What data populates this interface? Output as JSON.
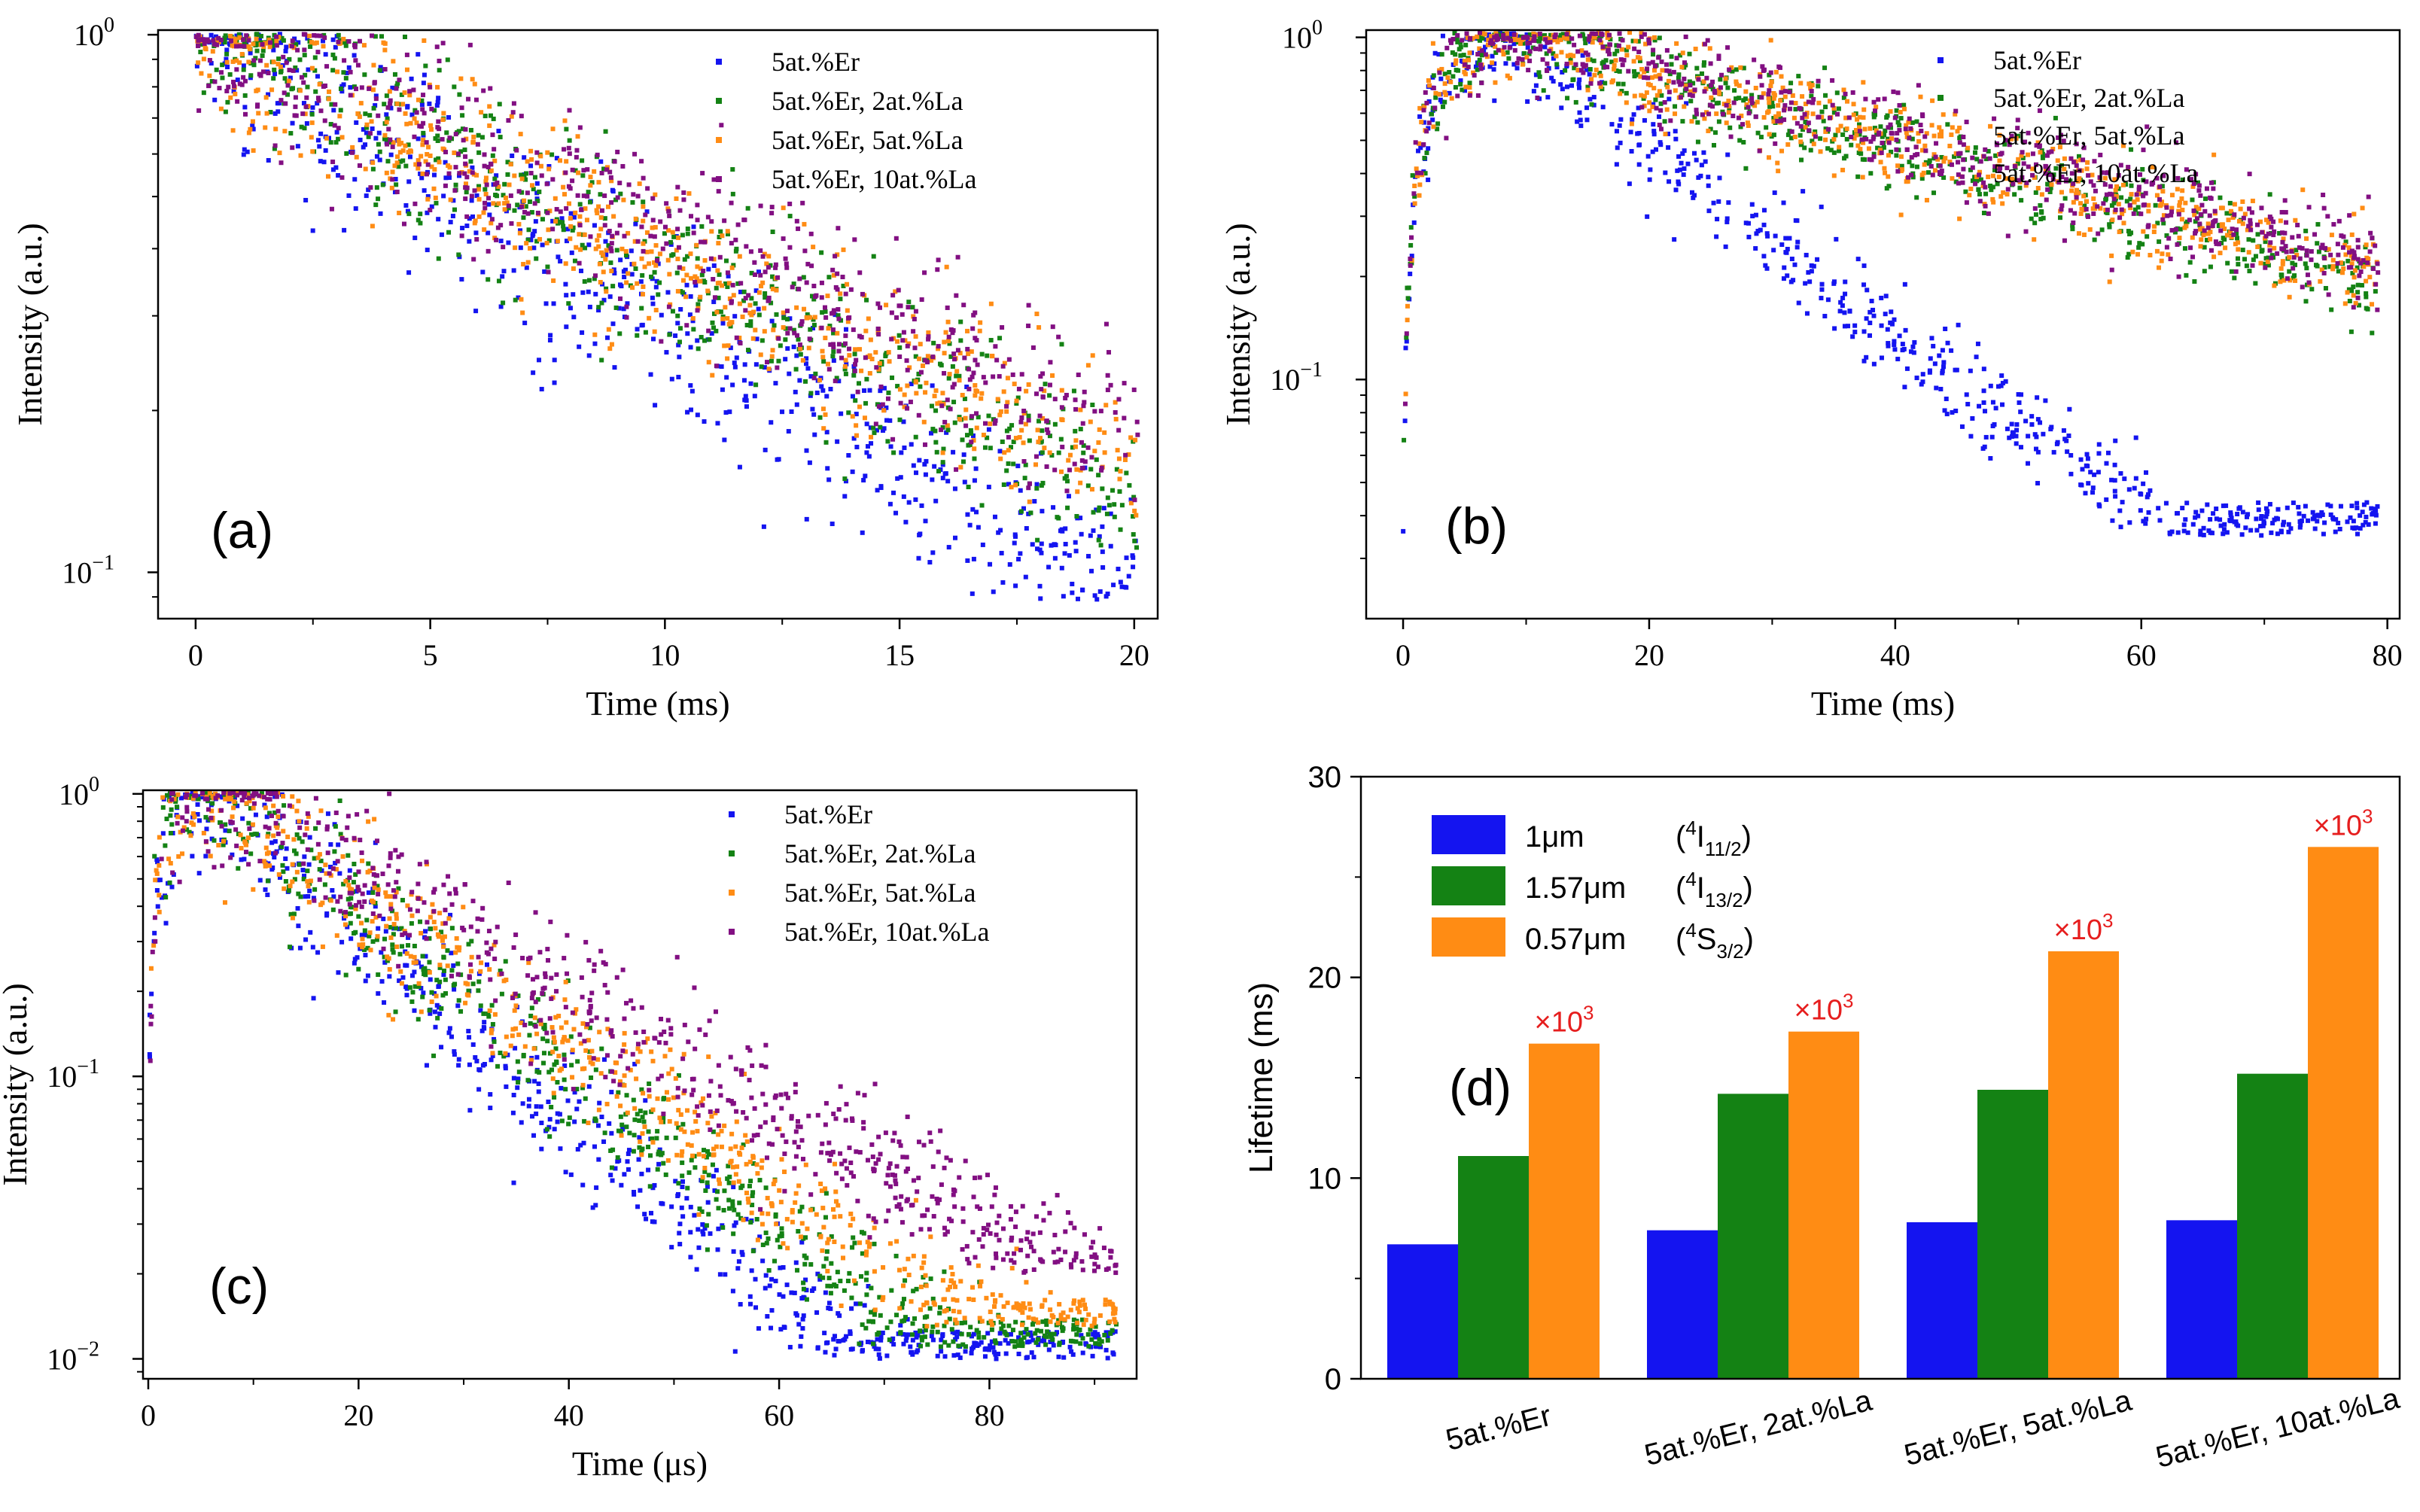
{
  "colors": {
    "blue": "#1414f0",
    "green": "#148214",
    "orange": "#ff8c14",
    "purple": "#820f82",
    "annot": "#e61e1e"
  },
  "chart_data": [
    {
      "panel": "a",
      "label": "(a)",
      "type": "scatter",
      "yscale": "log",
      "xlabel": "Time (ms)",
      "ylabel": "Intensity (a.u.)",
      "xlim": [
        -0.8,
        20.5
      ],
      "ylim": [
        0.082,
        1.02
      ],
      "xticks": [
        0,
        5,
        10,
        15,
        20
      ],
      "yticks": [
        {
          "v": 0.1,
          "b": "10",
          "e": "−1"
        },
        {
          "v": 1,
          "b": "10",
          "e": "0"
        }
      ],
      "legend_position": "top-right",
      "series": [
        {
          "name": "5at.%Er",
          "color_key": "blue",
          "rise": 0,
          "peak_t": 0.1,
          "tau": 7.6,
          "floor": 0.088,
          "noise": 0.1
        },
        {
          "name": "5at.%Er, 2at.%La",
          "color_key": "green",
          "rise": 0,
          "peak_t": 0.1,
          "tau": 9.2,
          "floor": 0.11,
          "noise": 0.09
        },
        {
          "name": "5at.%Er, 5at.%La",
          "color_key": "orange",
          "rise": 0,
          "peak_t": 0.1,
          "tau": 9.8,
          "floor": 0.12,
          "noise": 0.09
        },
        {
          "name": "5at.%Er, 10at.%La",
          "color_key": "purple",
          "rise": 0,
          "peak_t": 0.1,
          "tau": 10.5,
          "floor": 0.13,
          "noise": 0.09
        }
      ]
    },
    {
      "panel": "b",
      "label": "(b)",
      "type": "scatter",
      "yscale": "log",
      "xlabel": "Time (ms)",
      "ylabel": "Intensity (a.u.)",
      "xlim": [
        -3,
        81
      ],
      "ylim": [
        0.02,
        1.05
      ],
      "xticks": [
        0,
        20,
        40,
        60,
        80
      ],
      "yticks": [
        {
          "v": 0.1,
          "b": "10",
          "e": "−1"
        },
        {
          "v": 1,
          "b": "10",
          "e": "0"
        }
      ],
      "legend_position": "top-right",
      "series": [
        {
          "name": "5at.%Er",
          "color_key": "blue",
          "rise": 2.4,
          "peak_t": 9,
          "tau": 15,
          "floor": 0.035,
          "noise": 0.08
        },
        {
          "name": "5at.%Er, 2at.%La",
          "color_key": "green",
          "rise": 2.4,
          "peak_t": 10,
          "tau": 40,
          "floor": 0.06,
          "noise": 0.07
        },
        {
          "name": "5at.%Er, 5at.%La",
          "color_key": "orange",
          "rise": 2.4,
          "peak_t": 10,
          "tau": 42,
          "floor": 0.06,
          "noise": 0.07
        },
        {
          "name": "5at.%Er, 10at.%La",
          "color_key": "purple",
          "rise": 2.4,
          "peak_t": 10,
          "tau": 44,
          "floor": 0.06,
          "noise": 0.07
        }
      ]
    },
    {
      "panel": "c",
      "label": "(c)",
      "type": "scatter",
      "yscale": "log",
      "xlabel": "Time (μs)",
      "ylabel": "Intensity (a.u.)",
      "xlim": [
        -0.5,
        94
      ],
      "ylim": [
        0.0085,
        1.03
      ],
      "xticks": [
        0,
        20,
        40,
        60,
        80
      ],
      "yticks": [
        {
          "v": 0.01,
          "b": "10",
          "e": "−2"
        },
        {
          "v": 0.1,
          "b": "10",
          "e": "−1"
        },
        {
          "v": 1,
          "b": "10",
          "e": "0"
        }
      ],
      "legend_position": "top-right",
      "series": [
        {
          "name": "5at.%Er",
          "color_key": "blue",
          "rise": 1.2,
          "peak_t": 5.5,
          "tau": 13,
          "floor": 0.01,
          "noise": 0.12
        },
        {
          "name": "5at.%Er, 2at.%La",
          "color_key": "green",
          "rise": 1.2,
          "peak_t": 5.5,
          "tau": 15,
          "floor": 0.011,
          "noise": 0.12
        },
        {
          "name": "5at.%Er, 5at.%La",
          "color_key": "orange",
          "rise": 1.2,
          "peak_t": 6,
          "tau": 16.5,
          "floor": 0.013,
          "noise": 0.12
        },
        {
          "name": "5at.%Er, 10at.%La",
          "color_key": "purple",
          "rise": 1.2,
          "peak_t": 6.5,
          "tau": 20,
          "floor": 0.02,
          "noise": 0.12
        }
      ]
    },
    {
      "panel": "d",
      "label": "(d)",
      "type": "bar",
      "ylabel": "Lifetime (ms)",
      "ylim": [
        0,
        30
      ],
      "yticks": [
        0,
        10,
        20,
        30
      ],
      "categories": [
        "5at.%Er",
        "5at.%Er, 2at.%La",
        "5at.%Er, 5at.%La",
        "5at.%Er, 10at.%La"
      ],
      "series": [
        {
          "name": "1μm",
          "transition": {
            "sup": "4",
            "base": "I",
            "sub": "11/2"
          },
          "color_key": "blue",
          "values": [
            6.7,
            7.4,
            7.8,
            7.9
          ]
        },
        {
          "name": "1.57μm",
          "transition": {
            "sup": "4",
            "base": "I",
            "sub": "13/2"
          },
          "color_key": "green",
          "values": [
            11.1,
            14.2,
            14.4,
            15.2
          ]
        },
        {
          "name": "0.57μm",
          "transition": {
            "sup": "4",
            "base": "S",
            "sub": "3/2"
          },
          "color_key": "orange",
          "values": [
            16.7,
            17.3,
            21.3,
            26.5
          ]
        }
      ],
      "annotation": {
        "text": "×10",
        "exp": "3",
        "applies_to": "0.57μm"
      }
    }
  ]
}
